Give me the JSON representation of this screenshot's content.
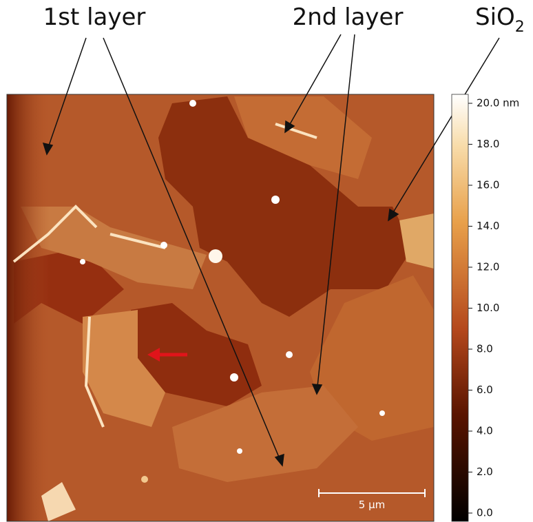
{
  "labels": {
    "first_layer": "1st layer",
    "second_layer": "2nd layer",
    "sio2": {
      "text": "SiO",
      "subscript": "2"
    }
  },
  "colorbar": {
    "range": [
      0,
      20
    ],
    "ticks": [
      {
        "value": 0,
        "label": "0.0"
      },
      {
        "value": 2,
        "label": "2.0"
      },
      {
        "value": 4,
        "label": "4.0"
      },
      {
        "value": 6,
        "label": "6.0"
      },
      {
        "value": 8,
        "label": "8.0"
      },
      {
        "value": 10,
        "label": "10.0"
      },
      {
        "value": 12,
        "label": "12.0"
      },
      {
        "value": 14,
        "label": "14.0"
      },
      {
        "value": 16,
        "label": "16.0"
      },
      {
        "value": 18,
        "label": "18.0"
      },
      {
        "value": 20,
        "label": "20.0 nm"
      }
    ]
  },
  "scale_bar": "5 μm"
}
